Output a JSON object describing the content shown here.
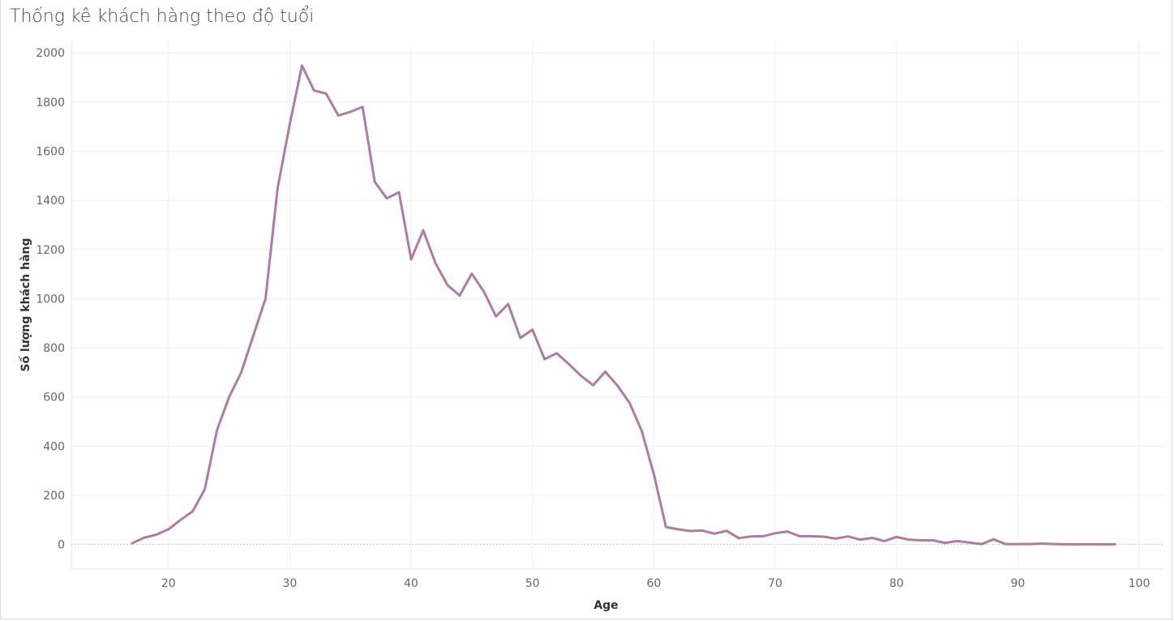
{
  "chart_data": {
    "type": "line",
    "title": "Thống kê khách hàng theo độ tuổi",
    "xlabel": "Age",
    "ylabel": "Số lượng khách hàng",
    "xlim": [
      12,
      102
    ],
    "ylim": [
      -100,
      2050
    ],
    "xticks": [
      20,
      30,
      40,
      50,
      60,
      70,
      80,
      90,
      100
    ],
    "yticks": [
      0,
      200,
      400,
      600,
      800,
      1000,
      1200,
      1400,
      1600,
      1800,
      2000
    ],
    "grid": true,
    "series_color": "#b07aa1",
    "x": [
      17,
      18,
      19,
      20,
      21,
      22,
      23,
      24,
      25,
      26,
      27,
      28,
      29,
      30,
      31,
      32,
      33,
      34,
      35,
      36,
      37,
      38,
      39,
      40,
      41,
      42,
      43,
      44,
      45,
      46,
      47,
      48,
      49,
      50,
      51,
      52,
      53,
      54,
      55,
      56,
      57,
      58,
      59,
      60,
      61,
      62,
      63,
      64,
      65,
      66,
      67,
      68,
      69,
      70,
      71,
      72,
      73,
      74,
      75,
      76,
      77,
      78,
      79,
      80,
      81,
      82,
      83,
      84,
      85,
      86,
      87,
      88,
      89,
      90,
      91,
      92,
      93,
      94,
      95,
      96,
      97,
      98
    ],
    "y": [
      5,
      28,
      40,
      62,
      100,
      135,
      225,
      465,
      600,
      700,
      850,
      1000,
      1450,
      1710,
      1948,
      1847,
      1834,
      1745,
      1760,
      1780,
      1475,
      1408,
      1433,
      1160,
      1278,
      1145,
      1055,
      1013,
      1102,
      1028,
      928,
      978,
      840,
      874,
      754,
      778,
      734,
      686,
      648,
      703,
      647,
      576,
      463,
      287,
      71,
      62,
      55,
      57,
      44,
      56,
      26,
      33,
      34,
      46,
      53,
      34,
      34,
      32,
      24,
      33,
      20,
      27,
      14,
      31,
      20,
      17,
      17,
      7,
      14,
      8,
      2,
      21,
      2,
      2,
      2,
      4,
      2,
      1,
      1,
      1,
      1,
      1
    ]
  }
}
